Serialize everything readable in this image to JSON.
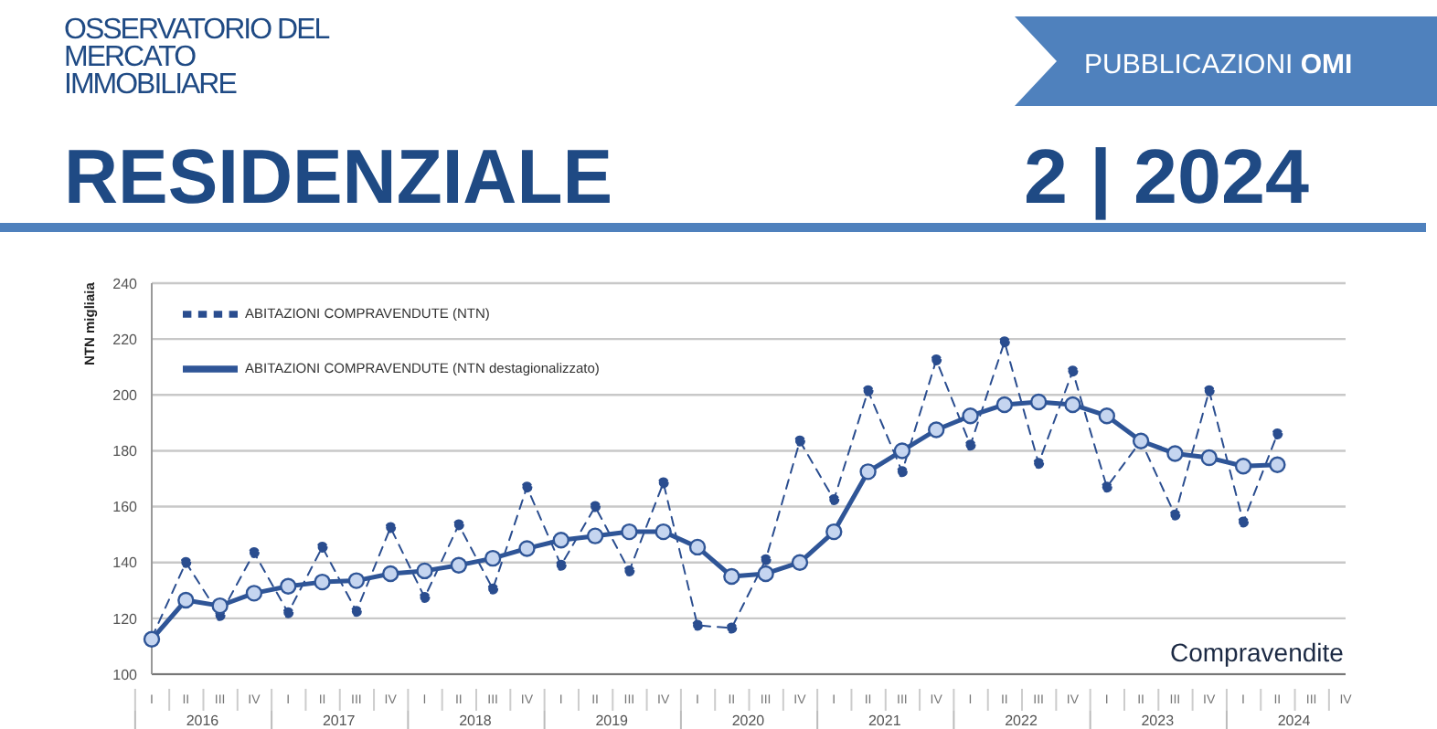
{
  "chart_data": {
    "type": "line",
    "title": "RESIDENZIALE",
    "subtitle": "2 | 2024",
    "ylabel": "NTN migliaia",
    "annotations": [
      "OSSERVATORIO DEL MERCATO IMMOBILIARE",
      "PUBBLICAZIONI OMI",
      "Compravendite",
      "2016",
      "2017",
      "2018",
      "2019",
      "2020",
      "2021",
      "2022",
      "2023",
      "2024"
    ],
    "categories": [
      "I",
      "II",
      "III",
      "IV",
      "I",
      "II",
      "III",
      "IV",
      "I",
      "II",
      "III",
      "IV",
      "I",
      "II",
      "III",
      "IV",
      "I",
      "II",
      "III",
      "IV",
      "I",
      "II",
      "III",
      "IV",
      "I",
      "II",
      "III",
      "IV",
      "I",
      "II",
      "III",
      "IV",
      "I",
      "II",
      "III",
      "IV"
    ],
    "series": [
      {
        "name": "ABITAZIONI COMPRAVENDUTE (NTN)",
        "color": "#2a4d8f",
        "line_style": "dashed",
        "values": [
          113,
          140,
          121,
          143.5,
          122,
          145.5,
          122.5,
          152.5,
          127.5,
          153.5,
          130.5,
          167,
          139,
          160,
          137,
          168.5,
          117.5,
          116.5,
          141,
          183.5,
          162.5,
          201.5,
          172.5,
          212.5,
          182,
          219,
          175.5,
          208.5,
          167,
          183.5,
          157,
          201.5,
          154.5,
          186,
          null,
          null
        ]
      },
      {
        "name": "ABITAZIONI COMPRAVENDUTE (NTN destagionalizzato)",
        "color": "#2f5597",
        "line_style": "solid",
        "values": [
          112.5,
          126.5,
          124.5,
          129,
          131.5,
          133,
          133.5,
          136,
          137,
          139,
          141.5,
          145,
          148,
          149.5,
          151,
          151,
          145.5,
          135,
          136,
          140,
          151,
          172.5,
          180,
          187.5,
          192.5,
          196.5,
          197.5,
          196.5,
          192.5,
          183.5,
          179,
          177.5,
          174.5,
          175,
          null,
          null
        ]
      }
    ],
    "ylim": [
      100,
      240
    ],
    "yticks": [
      100,
      120,
      140,
      160,
      180,
      200,
      220,
      240
    ],
    "grid": "y",
    "legend": "top left",
    "marker": "circle"
  }
}
